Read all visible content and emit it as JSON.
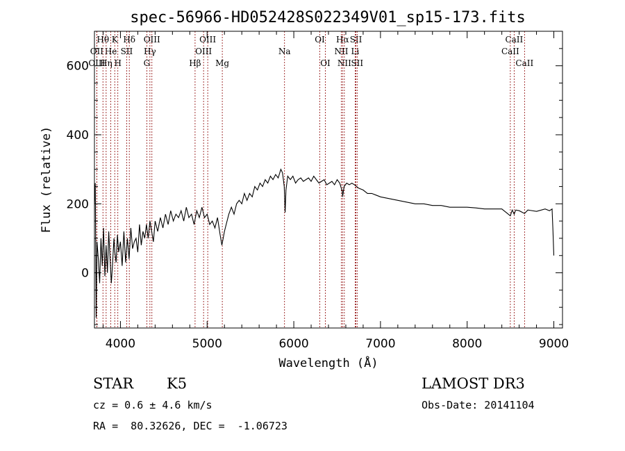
{
  "chart_data": {
    "type": "line",
    "title": "spec-56966-HD052428S022349V01_sp15-173.fits",
    "xlabel": "Wavelength (Å)",
    "ylabel": "Flux (relative)",
    "xlim": [
      3700,
      9100
    ],
    "ylim": [
      -160,
      700
    ],
    "xticks": [
      4000,
      5000,
      6000,
      7000,
      8000,
      9000
    ],
    "yticks": [
      0,
      200,
      400,
      600
    ],
    "line_color": "#8b0000",
    "series": [
      {
        "name": "flux",
        "x": [
          3700,
          3710,
          3720,
          3730,
          3745,
          3760,
          3775,
          3790,
          3805,
          3820,
          3835,
          3850,
          3865,
          3880,
          3895,
          3910,
          3925,
          3935,
          3950,
          3965,
          3980,
          4000,
          4020,
          4040,
          4060,
          4080,
          4100,
          4120,
          4140,
          4160,
          4180,
          4200,
          4220,
          4240,
          4260,
          4280,
          4300,
          4320,
          4340,
          4360,
          4380,
          4400,
          4430,
          4460,
          4490,
          4520,
          4550,
          4580,
          4610,
          4640,
          4670,
          4700,
          4730,
          4760,
          4790,
          4820,
          4850,
          4880,
          4910,
          4940,
          4970,
          5000,
          5030,
          5060,
          5090,
          5120,
          5150,
          5170,
          5185,
          5200,
          5220,
          5250,
          5280,
          5310,
          5340,
          5370,
          5400,
          5430,
          5460,
          5490,
          5520,
          5550,
          5580,
          5610,
          5640,
          5670,
          5700,
          5730,
          5760,
          5790,
          5820,
          5850,
          5870,
          5890,
          5895,
          5900,
          5910,
          5930,
          5960,
          5990,
          6020,
          6050,
          6080,
          6110,
          6140,
          6170,
          6200,
          6230,
          6260,
          6290,
          6320,
          6350,
          6380,
          6410,
          6440,
          6470,
          6500,
          6530,
          6560,
          6563,
          6580,
          6610,
          6640,
          6670,
          6700,
          6750,
          6800,
          6850,
          6900,
          6950,
          7000,
          7100,
          7200,
          7300,
          7400,
          7500,
          7600,
          7700,
          7800,
          7900,
          8000,
          8100,
          8200,
          8300,
          8400,
          8498,
          8520,
          8542,
          8560,
          8600,
          8662,
          8700,
          8800,
          8900,
          8950,
          8980,
          8990,
          9000
        ],
        "y": [
          200,
          260,
          -130,
          90,
          40,
          -30,
          100,
          20,
          130,
          -10,
          80,
          0,
          120,
          40,
          -30,
          30,
          100,
          60,
          30,
          110,
          60,
          90,
          20,
          120,
          30,
          100,
          40,
          130,
          70,
          90,
          100,
          60,
          140,
          80,
          120,
          100,
          140,
          100,
          150,
          120,
          90,
          150,
          120,
          160,
          130,
          170,
          140,
          180,
          150,
          170,
          160,
          180,
          150,
          190,
          160,
          170,
          140,
          180,
          160,
          190,
          160,
          170,
          140,
          150,
          130,
          160,
          110,
          80,
          100,
          120,
          140,
          170,
          190,
          170,
          200,
          210,
          200,
          230,
          210,
          230,
          220,
          250,
          240,
          260,
          250,
          270,
          260,
          280,
          270,
          285,
          275,
          300,
          290,
          250,
          210,
          175,
          240,
          280,
          270,
          280,
          260,
          270,
          275,
          265,
          270,
          275,
          265,
          280,
          270,
          260,
          265,
          270,
          255,
          260,
          265,
          255,
          270,
          260,
          235,
          220,
          250,
          260,
          255,
          260,
          255,
          245,
          240,
          230,
          230,
          225,
          220,
          215,
          210,
          205,
          200,
          200,
          195,
          195,
          190,
          190,
          190,
          188,
          185,
          185,
          185,
          165,
          182,
          170,
          182,
          180,
          172,
          182,
          178,
          185,
          180,
          185,
          120,
          50
        ]
      }
    ],
    "spectral_lines": [
      {
        "name": "Hθ",
        "wavelength": 3798,
        "row": 1
      },
      {
        "name": "K",
        "wavelength": 3934,
        "row": 1
      },
      {
        "name": "Hδ",
        "wavelength": 4102,
        "row": 1
      },
      {
        "name": "OIII",
        "wavelength": 4363,
        "row": 1
      },
      {
        "name": "OIII",
        "wavelength": 5007,
        "row": 1
      },
      {
        "name": "OI",
        "wavelength": 6300,
        "row": 1
      },
      {
        "name": "Hα",
        "wavelength": 6563,
        "row": 1
      },
      {
        "name": "SII",
        "wavelength": 6717,
        "row": 1
      },
      {
        "name": "CaII",
        "wavelength": 8542,
        "row": 1
      },
      {
        "name": "OII",
        "wavelength": 3727,
        "row": 2
      },
      {
        "name": "He",
        "wavelength": 3889,
        "row": 2
      },
      {
        "name": "SII",
        "wavelength": 4072,
        "row": 2
      },
      {
        "name": "Hγ",
        "wavelength": 4340,
        "row": 2
      },
      {
        "name": "OIII",
        "wavelength": 4959,
        "row": 2
      },
      {
        "name": "Na",
        "wavelength": 5893,
        "row": 2
      },
      {
        "name": "NII",
        "wavelength": 6548,
        "row": 2
      },
      {
        "name": "Li",
        "wavelength": 6708,
        "row": 2
      },
      {
        "name": "CaII",
        "wavelength": 8498,
        "row": 2
      },
      {
        "name": "OIII",
        "wavelength": 3727,
        "row": 3
      },
      {
        "name": "Hη",
        "wavelength": 3835,
        "row": 3
      },
      {
        "name": "H",
        "wavelength": 3970,
        "row": 3
      },
      {
        "name": "G",
        "wavelength": 4304,
        "row": 3
      },
      {
        "name": "Hβ",
        "wavelength": 4861,
        "row": 3
      },
      {
        "name": "Mg",
        "wavelength": 5175,
        "row": 3
      },
      {
        "name": "OI",
        "wavelength": 6364,
        "row": 3
      },
      {
        "name": "NII",
        "wavelength": 6583,
        "row": 3
      },
      {
        "name": "SII",
        "wavelength": 6731,
        "row": 3
      },
      {
        "name": "CaII",
        "wavelength": 8662,
        "row": 3
      }
    ]
  },
  "info": {
    "object_type": "STAR",
    "subclass": "K5",
    "survey": "LAMOST DR3",
    "cz": "cz = 0.6 ± 4.6 km/s",
    "obs_date": "Obs-Date: 20141104",
    "coords": "RA =  80.32626, DEC =  -1.06723"
  }
}
